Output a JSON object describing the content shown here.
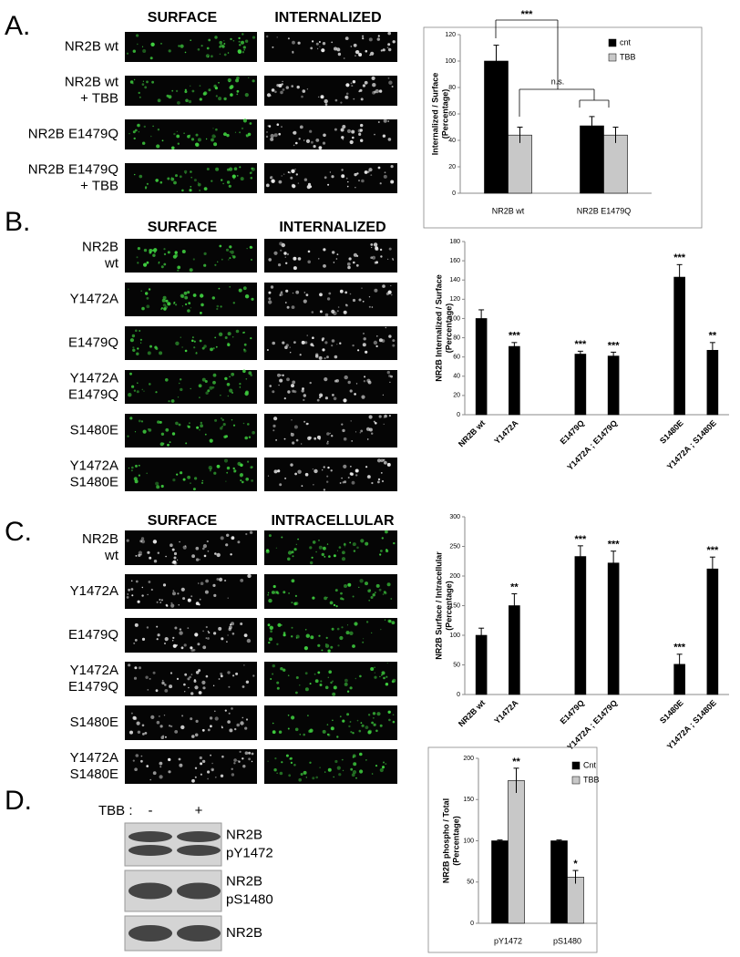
{
  "panels": [
    {
      "letter": "A.",
      "headers": [
        "SURFACE",
        "INTERNALIZED"
      ],
      "rows": [
        [
          "NR2B wt"
        ],
        [
          "NR2B wt",
          "+ TBB"
        ],
        [
          "NR2B E1479Q"
        ],
        [
          "NR2B E1479Q",
          "+ TBB"
        ]
      ]
    },
    {
      "letter": "B.",
      "headers": [
        "SURFACE",
        "INTERNALIZED"
      ],
      "rows": [
        [
          "NR2B",
          "wt"
        ],
        [
          "Y1472A"
        ],
        [
          "E1479Q"
        ],
        [
          "Y1472A",
          "E1479Q"
        ],
        [
          "S1480E"
        ],
        [
          "Y1472A",
          "S1480E"
        ]
      ]
    },
    {
      "letter": "C.",
      "headers": [
        "SURFACE",
        "INTRACELLULAR"
      ],
      "rows": [
        [
          "NR2B",
          "wt"
        ],
        [
          "Y1472A"
        ],
        [
          "E1479Q"
        ],
        [
          "Y1472A",
          "E1479Q"
        ],
        [
          "S1480E"
        ],
        [
          "Y1472A",
          "S1480E"
        ]
      ]
    },
    {
      "letter": "D."
    }
  ],
  "blot": {
    "treatment_label": "TBB :",
    "lanes": [
      "-",
      "+"
    ],
    "bands": [
      [
        "NR2B",
        "pY1472"
      ],
      [
        "NR2B",
        "pS1480"
      ],
      [
        "NR2B"
      ]
    ]
  },
  "chart_data": [
    {
      "type": "bar",
      "ylabel": [
        "Internalized / Surface",
        "(Percentage)"
      ],
      "categories": [
        "NR2B wt",
        "NR2B E1479Q"
      ],
      "series": [
        {
          "name": "cnt",
          "color": "#000000",
          "values": [
            100,
            51
          ],
          "errors": [
            12,
            7
          ]
        },
        {
          "name": "TBB",
          "color": "#c8c8c8",
          "values": [
            44,
            44
          ],
          "errors": [
            6,
            6
          ]
        }
      ],
      "ylim": [
        0,
        120
      ],
      "yticks": [
        0,
        20,
        40,
        60,
        80,
        100,
        120
      ],
      "legend": "upper right",
      "annotations": [
        "***",
        "n.s."
      ]
    },
    {
      "type": "bar",
      "ylabel": [
        "NR2B Internalized / Surface",
        "(Percentage)"
      ],
      "categories": [
        "NR2B wt",
        "Y1472A",
        null,
        "E1479Q",
        "Y1472A ; E1479Q",
        null,
        "S1480E",
        "Y1472A ; S1480E"
      ],
      "series": [
        {
          "color": "#000000",
          "values": [
            100,
            71,
            null,
            63,
            61,
            null,
            143,
            67
          ],
          "errors": [
            9,
            4,
            null,
            3,
            4,
            null,
            13,
            8
          ],
          "annotations": [
            null,
            "***",
            null,
            "***",
            "***",
            null,
            "***",
            "**"
          ]
        }
      ],
      "ylim": [
        0,
        180
      ],
      "yticks": [
        0,
        20,
        40,
        60,
        80,
        100,
        120,
        140,
        160,
        180
      ]
    },
    {
      "type": "bar",
      "ylabel": [
        "NR2B Surface / Intracellular",
        "(Percentage)"
      ],
      "categories": [
        "NR2B wt",
        "Y1472A",
        null,
        "E1479Q",
        "Y1472A ; E1479Q",
        null,
        "S1480E",
        "Y1472A ; S1480E"
      ],
      "series": [
        {
          "color": "#000000",
          "values": [
            100,
            150,
            null,
            233,
            222,
            null,
            51,
            212
          ],
          "errors": [
            12,
            20,
            null,
            18,
            20,
            null,
            17,
            20
          ],
          "annotations": [
            null,
            "**",
            null,
            "***",
            "***",
            null,
            "***",
            "***"
          ]
        }
      ],
      "ylim": [
        0,
        300
      ],
      "yticks": [
        0,
        50,
        100,
        150,
        200,
        250,
        300
      ]
    },
    {
      "type": "bar",
      "ylabel": [
        "NR2B phospho / Total",
        "(Percentage)"
      ],
      "categories": [
        "pY1472",
        "pS1480"
      ],
      "series": [
        {
          "name": "Cnt",
          "color": "#000000",
          "values": [
            100,
            100
          ],
          "errors": [
            1,
            1
          ],
          "annotations": [
            null,
            null
          ]
        },
        {
          "name": "TBB",
          "color": "#c8c8c8",
          "values": [
            173,
            56
          ],
          "errors": [
            15,
            8
          ],
          "annotations": [
            "**",
            "*"
          ]
        }
      ],
      "ylim": [
        0,
        200
      ],
      "yticks": [
        0,
        50,
        100,
        150,
        200
      ],
      "legend": "upper right"
    }
  ]
}
